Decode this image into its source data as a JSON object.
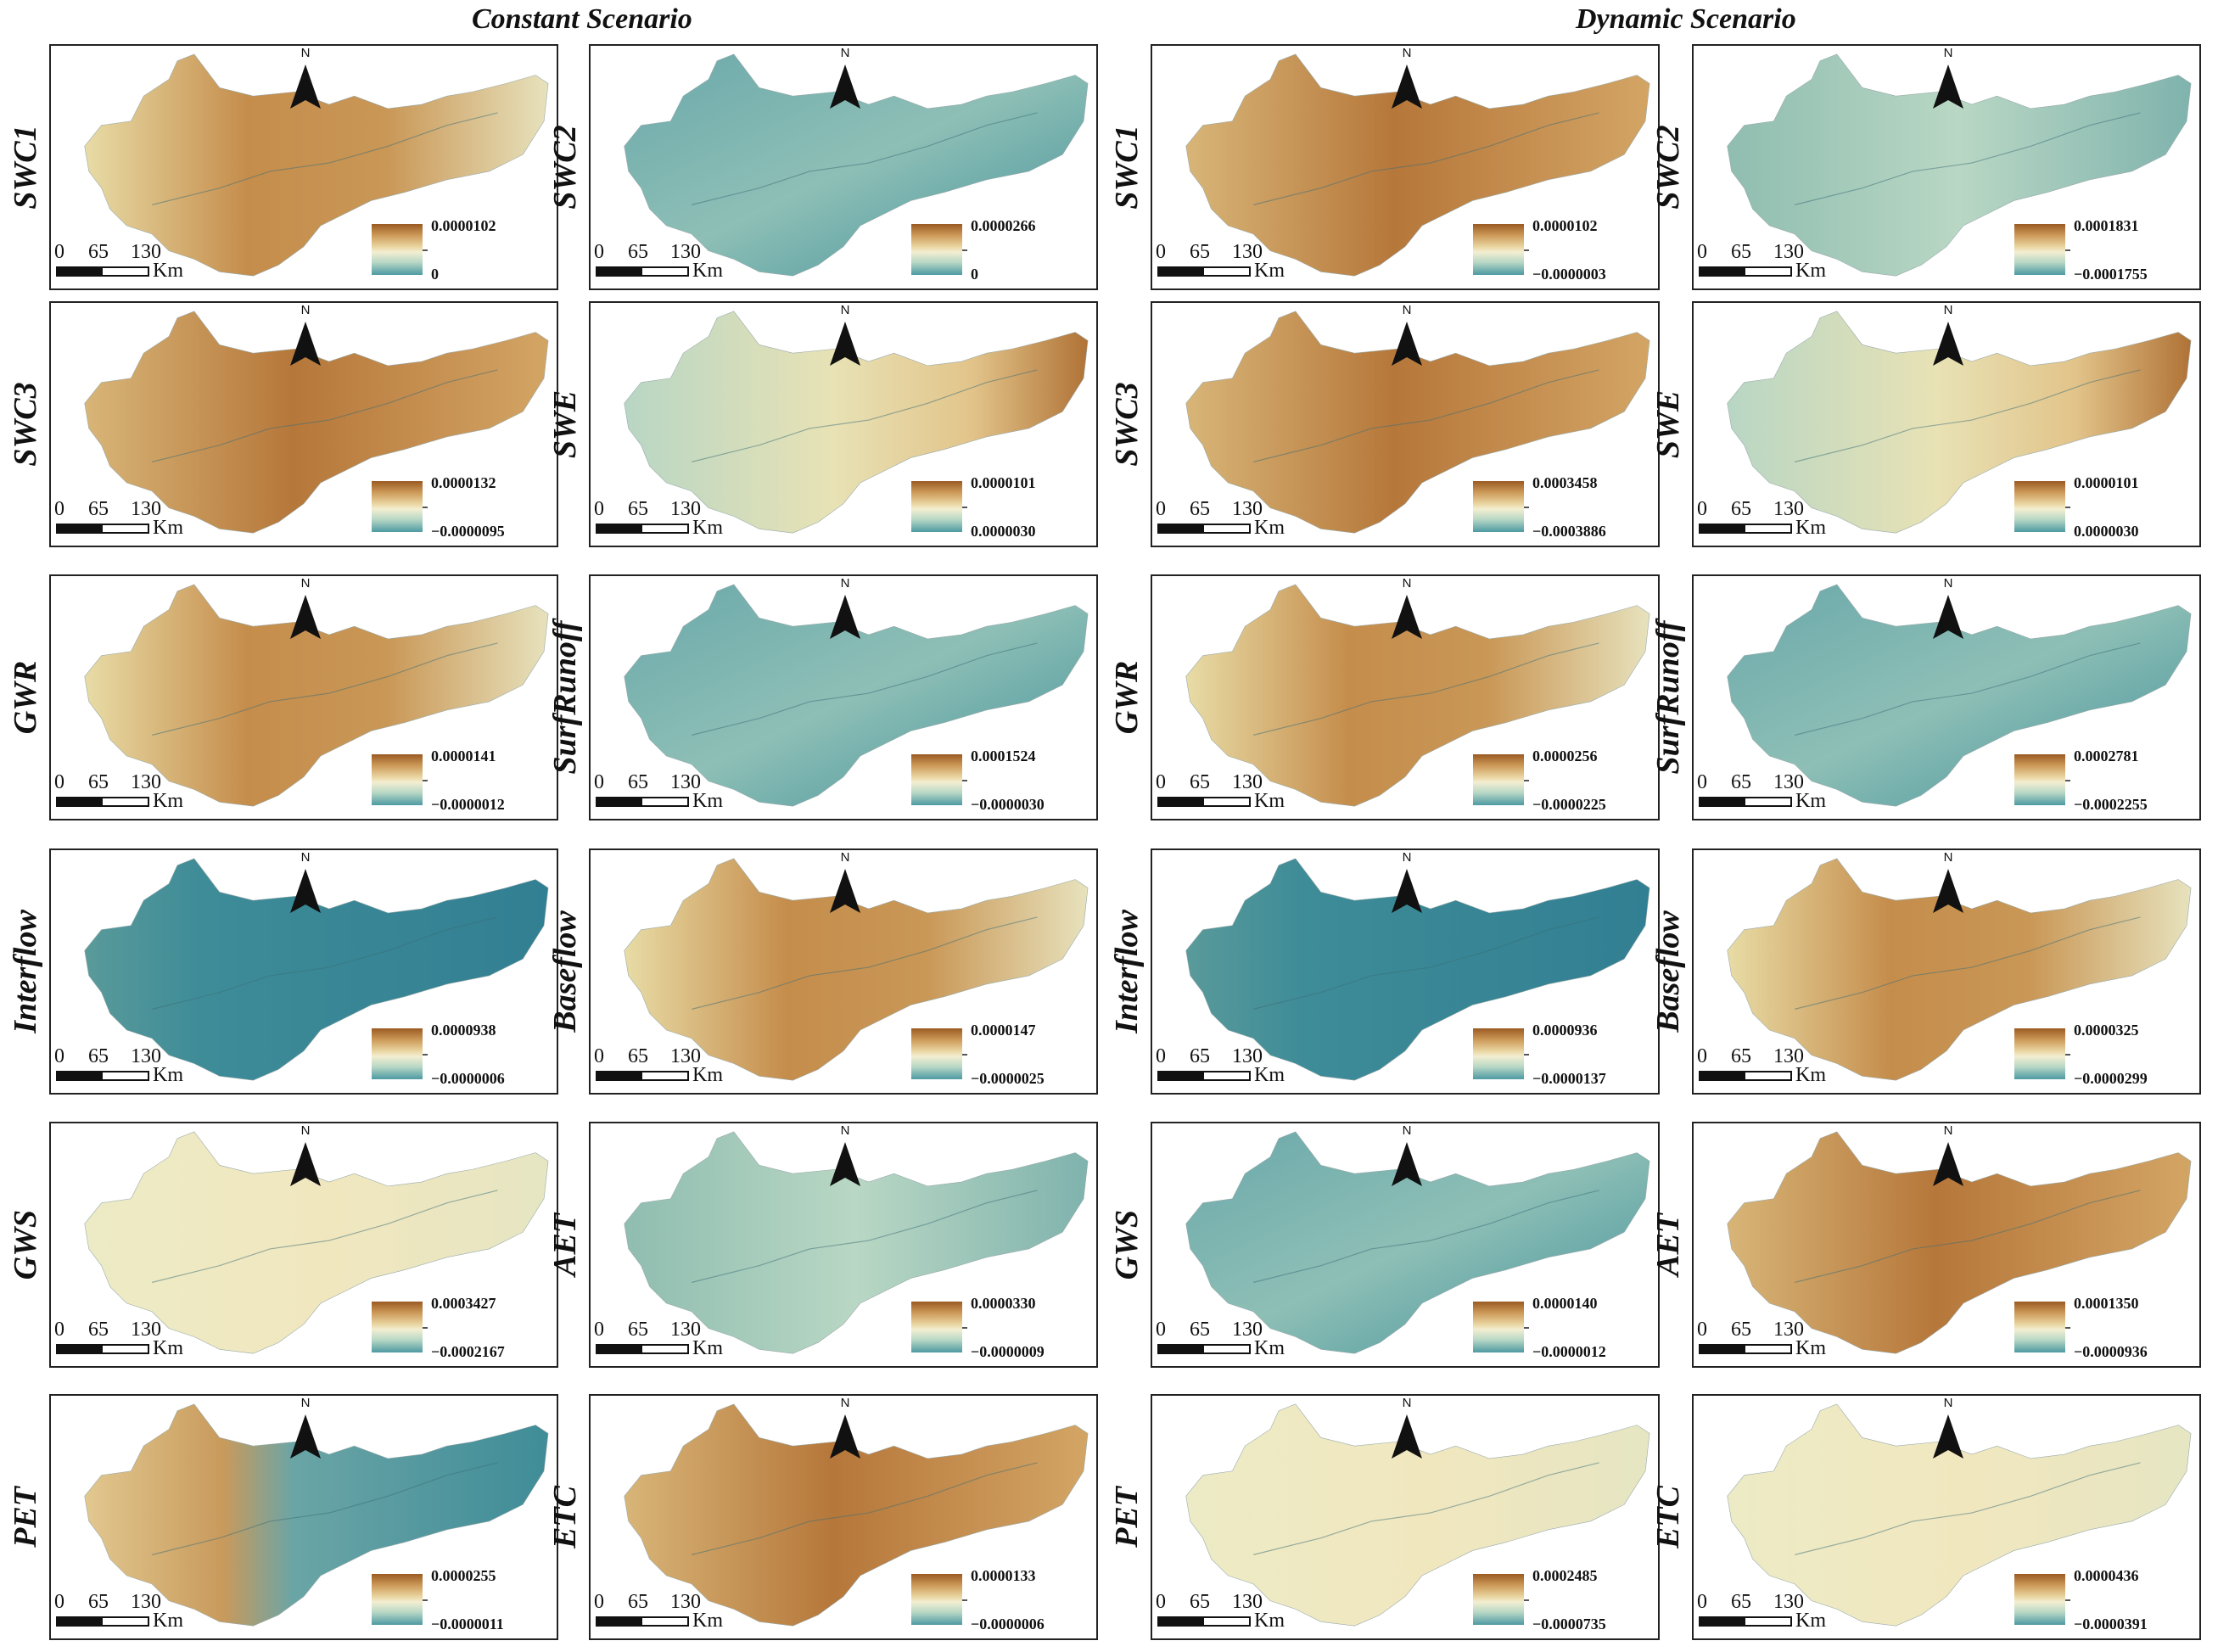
{
  "titles": {
    "constant": "Constant Scenario",
    "dynamic": "Dynamic Scenario"
  },
  "north_label": "N",
  "scale": {
    "ticks": [
      "0",
      "65",
      "130"
    ],
    "unit": "Km"
  },
  "legend_colors": {
    "high": "#9a5a22",
    "mid": "#f3eed2",
    "low": "#4d9aa2"
  },
  "panels": [
    {
      "scenario": "Constant",
      "variable": "SWC1",
      "max": "0.0000102",
      "min": "0",
      "pattern": "mid-warm"
    },
    {
      "scenario": "Constant",
      "variable": "SWC2",
      "max": "0.0000266",
      "min": "0",
      "pattern": "cool"
    },
    {
      "scenario": "Dynamic",
      "variable": "SWC1",
      "max": "0.0000102",
      "min": "−0.0000003",
      "pattern": "warm"
    },
    {
      "scenario": "Dynamic",
      "variable": "SWC2",
      "max": "0.0001831",
      "min": "−0.0001755",
      "pattern": "light-cool"
    },
    {
      "scenario": "Constant",
      "variable": "SWC3",
      "max": "0.0000132",
      "min": "−0.0000095",
      "pattern": "warm"
    },
    {
      "scenario": "Constant",
      "variable": "SWE",
      "max": "0.0000101",
      "min": "0.0000030",
      "pattern": "east-warm"
    },
    {
      "scenario": "Dynamic",
      "variable": "SWC3",
      "max": "0.0003458",
      "min": "−0.0003886",
      "pattern": "warm"
    },
    {
      "scenario": "Dynamic",
      "variable": "SWE",
      "max": "0.0000101",
      "min": "0.0000030",
      "pattern": "east-warm"
    },
    {
      "scenario": "Constant",
      "variable": "GWR",
      "max": "0.0000141",
      "min": "−0.0000012",
      "pattern": "mid-warm"
    },
    {
      "scenario": "Constant",
      "variable": "SurfRunoff",
      "max": "0.0001524",
      "min": "−0.0000030",
      "pattern": "cool"
    },
    {
      "scenario": "Dynamic",
      "variable": "GWR",
      "max": "0.0000256",
      "min": "−0.0000225",
      "pattern": "mid-warm"
    },
    {
      "scenario": "Dynamic",
      "variable": "SurfRunoff",
      "max": "0.0002781",
      "min": "−0.0002255",
      "pattern": "cool"
    },
    {
      "scenario": "Constant",
      "variable": "Interflow",
      "max": "0.0000938",
      "min": "−0.0000006",
      "pattern": "deep-cool"
    },
    {
      "scenario": "Constant",
      "variable": "Baseflow",
      "max": "0.0000147",
      "min": "−0.0000025",
      "pattern": "mid-warm"
    },
    {
      "scenario": "Dynamic",
      "variable": "Interflow",
      "max": "0.0000936",
      "min": "−0.0000137",
      "pattern": "deep-cool"
    },
    {
      "scenario": "Dynamic",
      "variable": "Baseflow",
      "max": "0.0000325",
      "min": "−0.0000299",
      "pattern": "mid-warm"
    },
    {
      "scenario": "Constant",
      "variable": "GWS",
      "max": "0.0003427",
      "min": "−0.0002167",
      "pattern": "pale"
    },
    {
      "scenario": "Constant",
      "variable": "AET",
      "max": "0.0000330",
      "min": "−0.0000009",
      "pattern": "light-cool"
    },
    {
      "scenario": "Dynamic",
      "variable": "GWS",
      "max": "0.0000140",
      "min": "−0.0000012",
      "pattern": "cool"
    },
    {
      "scenario": "Dynamic",
      "variable": "AET",
      "max": "0.0001350",
      "min": "−0.0000936",
      "pattern": "warm"
    },
    {
      "scenario": "Constant",
      "variable": "PET",
      "max": "0.0000255",
      "min": "−0.0000011",
      "pattern": "west-warm"
    },
    {
      "scenario": "Constant",
      "variable": "ETC",
      "max": "0.0000133",
      "min": "−0.0000006",
      "pattern": "warm"
    },
    {
      "scenario": "Dynamic",
      "variable": "PET",
      "max": "0.0002485",
      "min": "−0.0000735",
      "pattern": "pale"
    },
    {
      "scenario": "Dynamic",
      "variable": "ETC",
      "max": "0.0000436",
      "min": "−0.0000391",
      "pattern": "pale"
    }
  ]
}
